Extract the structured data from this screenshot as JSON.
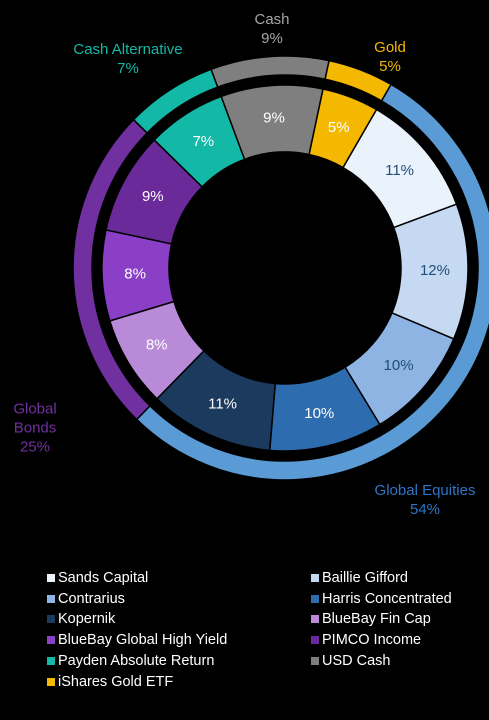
{
  "chart_data": {
    "type": "donut",
    "inner": {
      "categories": [
        "Sands Capital",
        "Baillie Gifford",
        "Contrarius",
        "Harris Concentrated",
        "Kopernik",
        "BlueBay Fin Cap",
        "BlueBay Global High Yield",
        "PIMCO Income",
        "Payden Absolute Return",
        "USD Cash",
        "iShares Gold ETF"
      ],
      "values": [
        11,
        12,
        10,
        10,
        11,
        8,
        8,
        9,
        7,
        9,
        5
      ],
      "value_labels": [
        "11%",
        "12%",
        "10%",
        "10%",
        "11%",
        "8%",
        "8%",
        "9%",
        "7%",
        "9%",
        "5%"
      ],
      "colors": [
        "#eaf2fb",
        "#c5daf2",
        "#8db4e2",
        "#2e6cb0",
        "#1b3a5e",
        "#b88ad8",
        "#8a3fc6",
        "#6a2a9a",
        "#13b8a6",
        "#7f7f7f",
        "#f5b800"
      ]
    },
    "outer": {
      "categories": [
        "Global Equities",
        "Global Bonds",
        "Cash Alternative",
        "Cash",
        "Gold"
      ],
      "values": [
        54,
        25,
        7,
        9,
        5
      ],
      "value_labels": [
        "54%",
        "25%",
        "7%",
        "9%",
        "5%"
      ],
      "colors": [
        "#5b9bd5",
        "#7030a0",
        "#13b8a6",
        "#7f7f7f",
        "#f5b800"
      ]
    }
  }
}
